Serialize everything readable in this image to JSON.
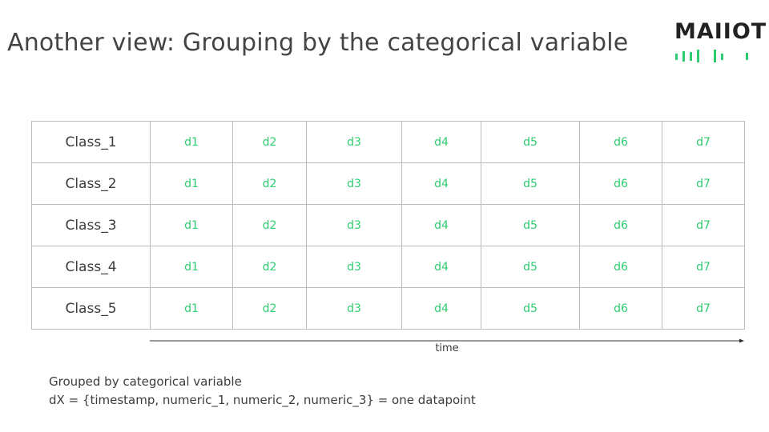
{
  "title": "Another view: Grouping by the categorical variable",
  "logo": {
    "text": "MAIIOT",
    "color": "#222222",
    "accent": "#2ecc71"
  },
  "table": {
    "rows": [
      {
        "label": "Class_1",
        "cells": [
          "d1",
          "d2",
          "d3",
          "d4",
          "d5",
          "d6",
          "d7"
        ]
      },
      {
        "label": "Class_2",
        "cells": [
          "d1",
          "d2",
          "d3",
          "d4",
          "d5",
          "d6",
          "d7"
        ]
      },
      {
        "label": "Class_3",
        "cells": [
          "d1",
          "d2",
          "d3",
          "d4",
          "d5",
          "d6",
          "d7"
        ]
      },
      {
        "label": "Class_4",
        "cells": [
          "d1",
          "d2",
          "d3",
          "d4",
          "d5",
          "d6",
          "d7"
        ]
      },
      {
        "label": "Class_5",
        "cells": [
          "d1",
          "d2",
          "d3",
          "d4",
          "d5",
          "d6",
          "d7"
        ]
      }
    ],
    "data_color": "#2ecc71"
  },
  "axis": {
    "label": "time"
  },
  "notes": [
    "Grouped by categorical variable",
    "dX = {timestamp, numeric_1, numeric_2, numeric_3} = one datapoint"
  ]
}
